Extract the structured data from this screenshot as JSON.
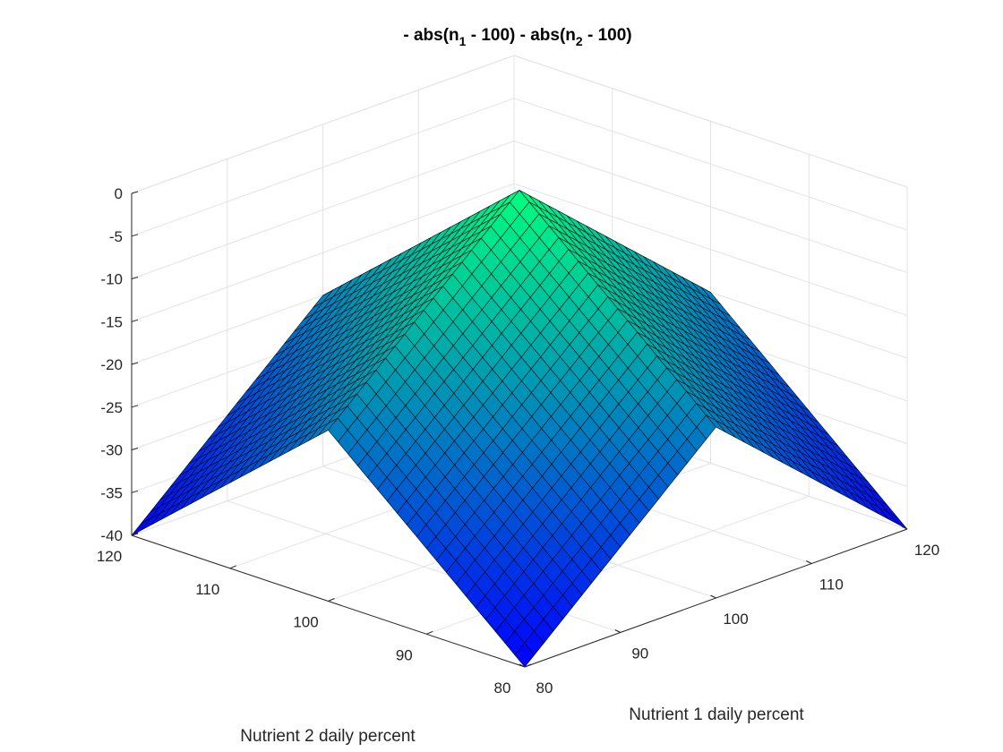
{
  "chart_data": {
    "type": "surface",
    "title_parts": [
      "- abs(n",
      "1",
      " - 100) - abs(n",
      "2",
      " - 100)"
    ],
    "xlabel": "Nutrient 1 daily percent",
    "ylabel": "Nutrient 2 daily percent",
    "zlabel": "",
    "x_range": [
      80,
      120
    ],
    "y_range": [
      80,
      120
    ],
    "z_range": [
      -40,
      0
    ],
    "x_ticks": [
      "80",
      "90",
      "100",
      "110",
      "120"
    ],
    "y_ticks": [
      "80",
      "90",
      "100",
      "110",
      "120"
    ],
    "z_ticks": [
      "-40",
      "-35",
      "-30",
      "-25",
      "-20",
      "-15",
      "-10",
      "-5",
      "0"
    ],
    "function": "z = - abs(n1 - 100) - abs(n2 - 100)",
    "mesh_step": 1,
    "grid": true,
    "colormap": "winter",
    "colormap_low": "#0000ff",
    "colormap_high": "#00ff80"
  }
}
